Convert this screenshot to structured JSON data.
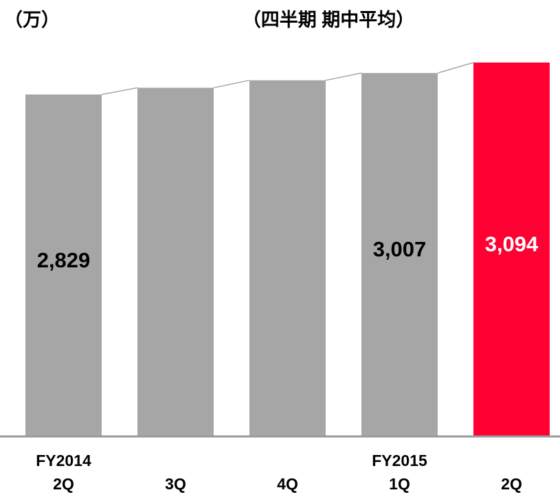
{
  "chart_data": {
    "type": "bar",
    "title": "（四半期 期中平均）",
    "unit_label": "（万）",
    "categories": [
      [
        "FY2014",
        "2Q"
      ],
      [
        "3Q"
      ],
      [
        "4Q"
      ],
      [
        "FY2015",
        "1Q"
      ],
      [
        "2Q"
      ]
    ],
    "values": [
      2829,
      2885,
      2947,
      3007,
      3094
    ],
    "value_labels": [
      "2,829",
      null,
      null,
      "3,007",
      "3,094"
    ],
    "colors": [
      "#a6a6a6",
      "#a6a6a6",
      "#a6a6a6",
      "#a6a6a6",
      "#ff0033"
    ],
    "label_colors": [
      "#000000",
      "#000000",
      "#000000",
      "#000000",
      "#ffffff"
    ],
    "ylim": [
      0,
      3094
    ]
  }
}
